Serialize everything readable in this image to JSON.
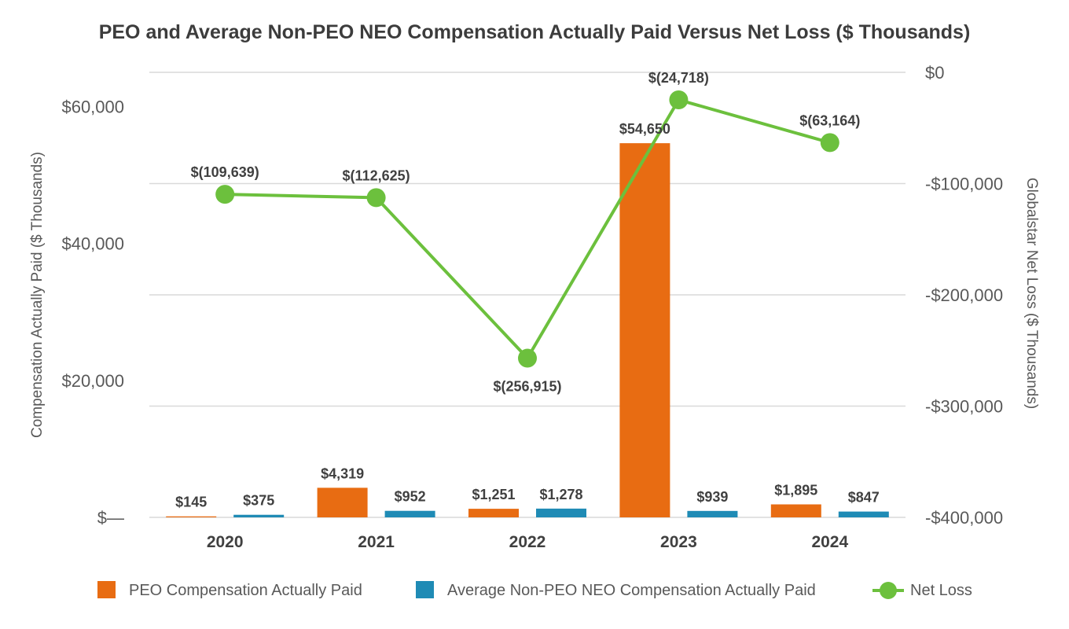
{
  "chart_data": {
    "type": "bar",
    "title": "PEO and Average Non-PEO NEO Compensation Actually Paid Versus Net Loss ($ Thousands)",
    "ylabel": "Compensation Actually Paid ($ Thousands)",
    "y2label": "Globalstar Net Loss ($ Thousands)",
    "categories": [
      "2020",
      "2021",
      "2022",
      "2023",
      "2024"
    ],
    "ylim": [
      0,
      65000
    ],
    "y2lim": [
      -400000,
      0
    ],
    "yticks": [
      {
        "value": 0,
        "label": "$—"
      },
      {
        "value": 20000,
        "label": "$20,000"
      },
      {
        "value": 40000,
        "label": "$40,000"
      },
      {
        "value": 60000,
        "label": "$60,000"
      }
    ],
    "y2ticks": [
      {
        "value": 0,
        "label": "$0"
      },
      {
        "value": -100000,
        "label": "-$100,000"
      },
      {
        "value": -200000,
        "label": "-$200,000"
      },
      {
        "value": -300000,
        "label": "-$300,000"
      },
      {
        "value": -400000,
        "label": "-$400,000"
      }
    ],
    "series": [
      {
        "name": "PEO Compensation Actually Paid",
        "kind": "bar",
        "axis": "left",
        "color": "#e86c12",
        "values": [
          145,
          4319,
          1251,
          54650,
          1895
        ],
        "labels": [
          "$145",
          "$4,319",
          "$1,251",
          "$54,650",
          "$1,895"
        ]
      },
      {
        "name": "Average Non-PEO NEO Compensation Actually Paid",
        "kind": "bar",
        "axis": "left",
        "color": "#1f8bb5",
        "values": [
          375,
          952,
          1278,
          939,
          847
        ],
        "labels": [
          "$375",
          "$952",
          "$1,278",
          "$939",
          "$847"
        ]
      },
      {
        "name": "Net Loss",
        "kind": "line",
        "axis": "right",
        "color": "#6cc03d",
        "values": [
          -109639,
          -112625,
          -256915,
          -24718,
          -63164
        ],
        "labels": [
          "$(109,639)",
          "$(112,625)",
          "$(256,915)",
          "$(24,718)",
          "$(63,164)"
        ]
      }
    ],
    "grid": true,
    "legend": "bottom"
  }
}
